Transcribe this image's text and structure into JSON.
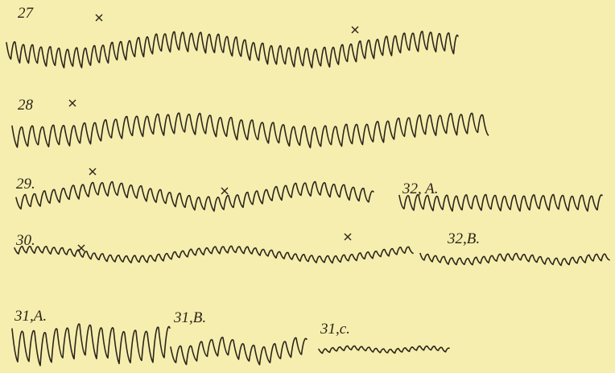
{
  "tracings": [
    {
      "label": "27"
    },
    {
      "label": "28"
    },
    {
      "label": "29."
    },
    {
      "label": "32, A."
    },
    {
      "label": "30."
    },
    {
      "label": "32,B."
    },
    {
      "label": "31,A."
    },
    {
      "label": "31,B."
    },
    {
      "label": "31,c."
    }
  ]
}
